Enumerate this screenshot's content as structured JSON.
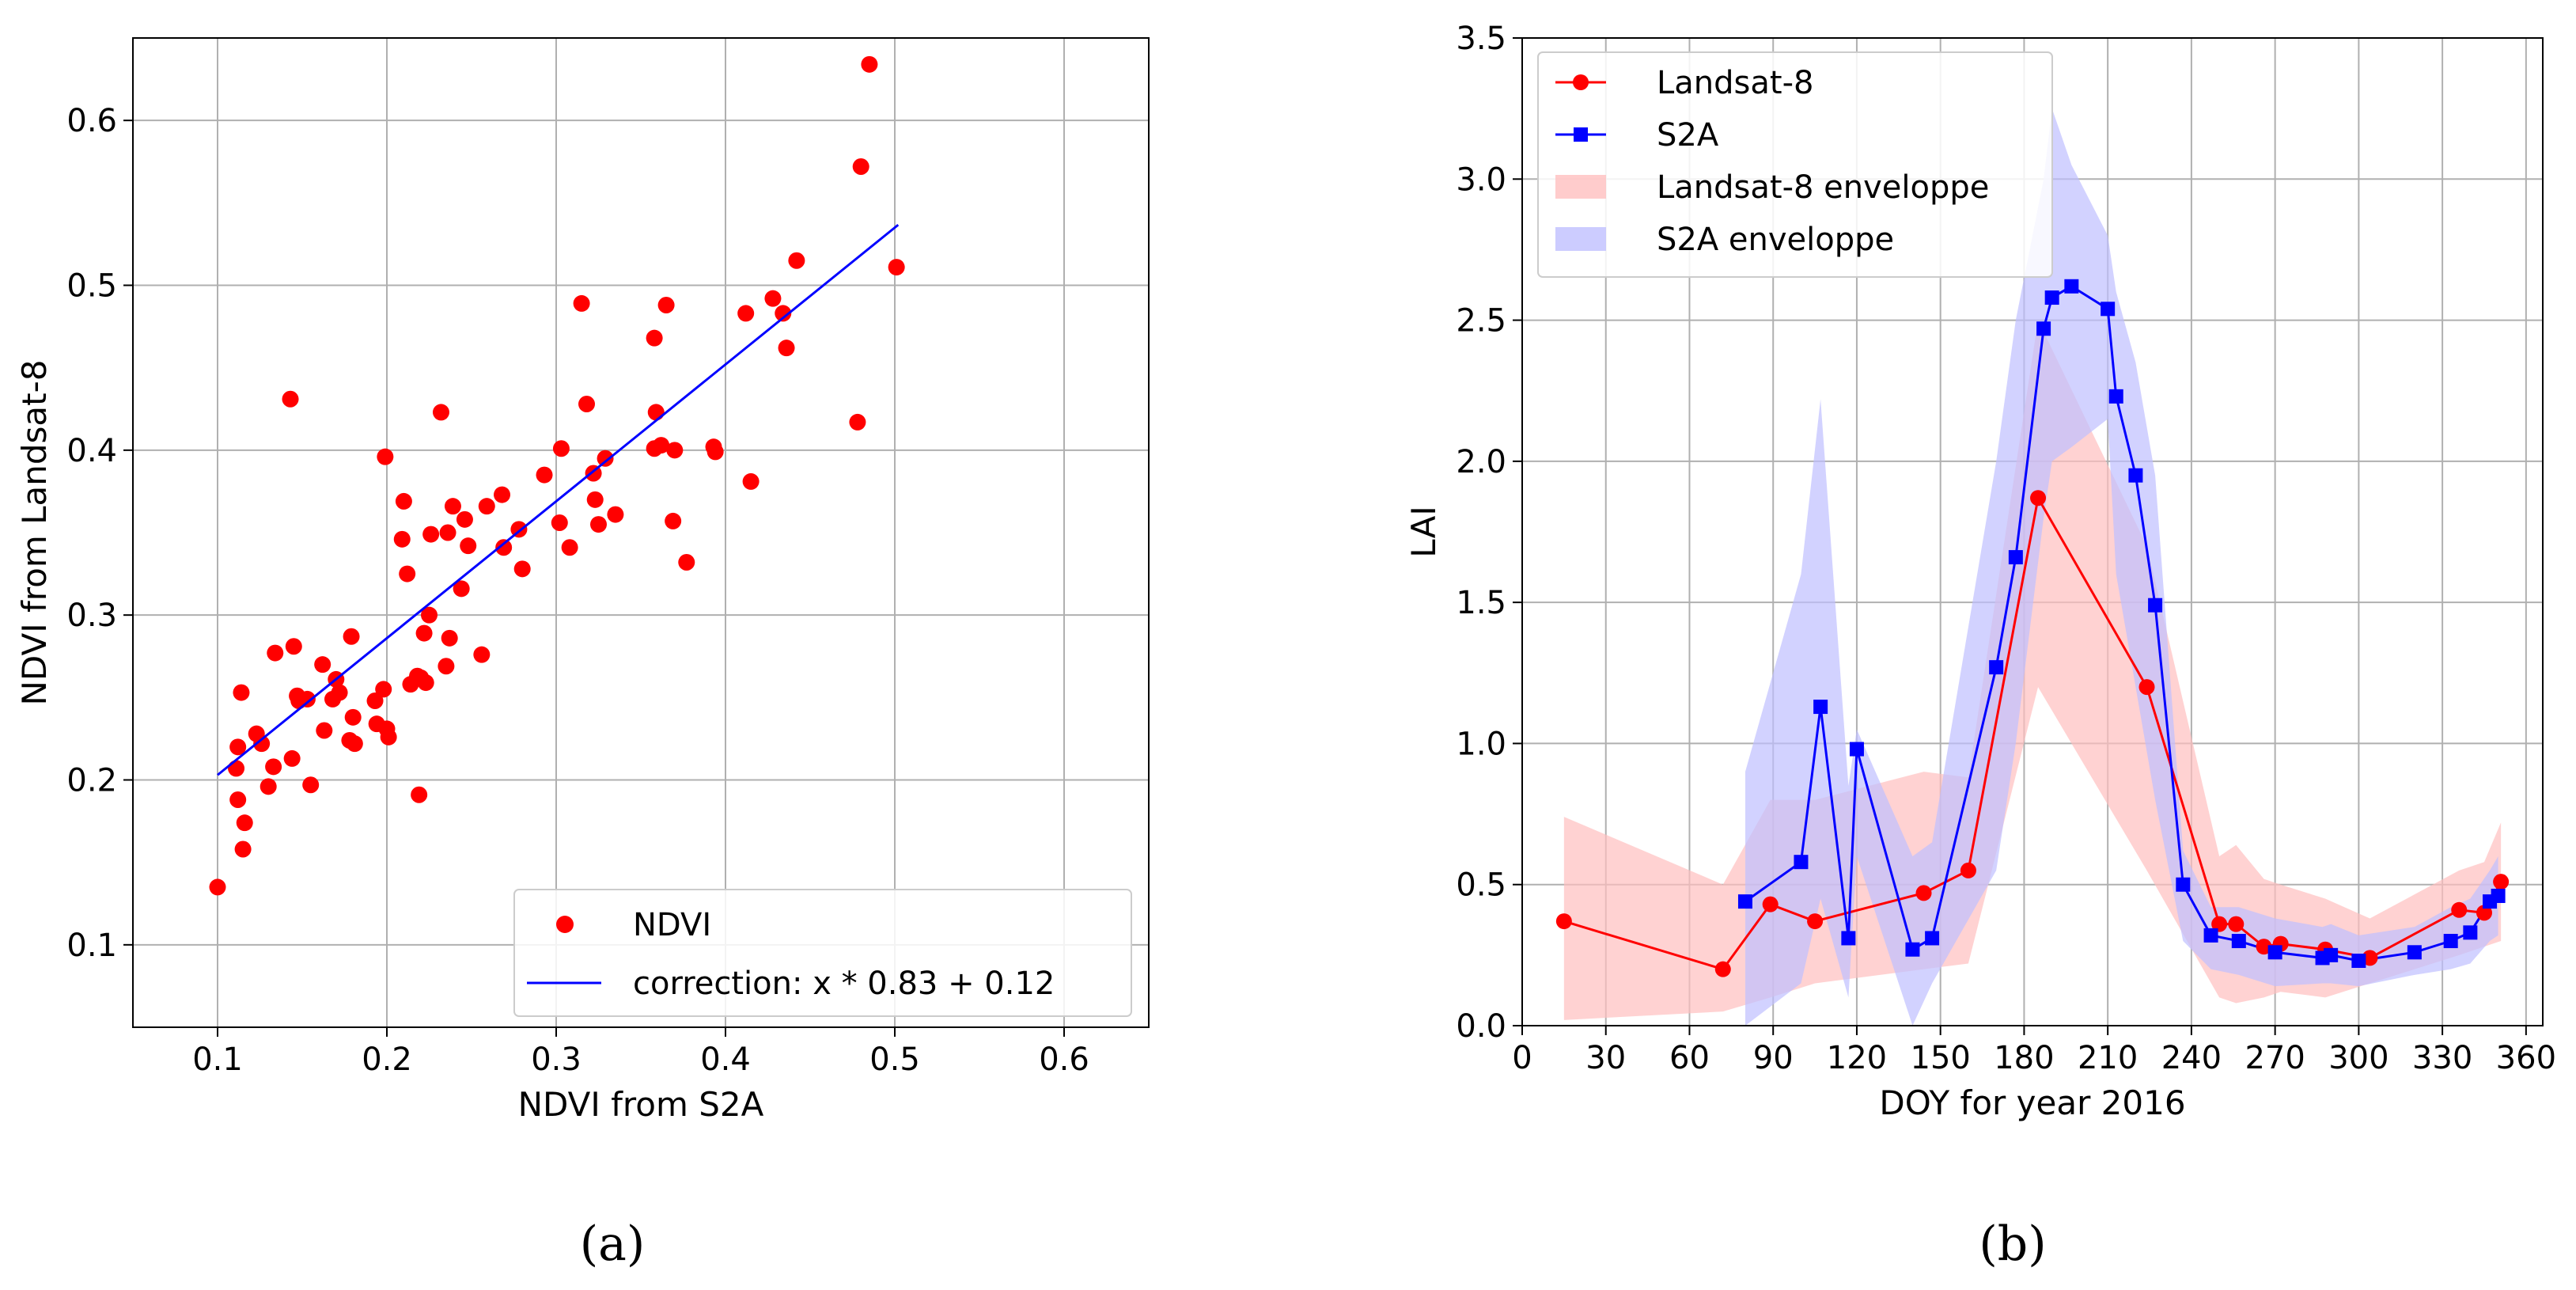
{
  "figure": {
    "caption_a": "(a)",
    "caption_b": "(b)"
  },
  "chart_data": [
    {
      "type": "scatter",
      "title": "",
      "xlabel": "NDVI from S2A",
      "ylabel": "NDVI from Landsat-8",
      "xlim": [
        0.05,
        0.65
      ],
      "ylim": [
        0.05,
        0.65
      ],
      "xticks": [
        0.1,
        0.2,
        0.3,
        0.4,
        0.5,
        0.6
      ],
      "xtick_labels": [
        "0.1",
        "0.2",
        "0.3",
        "0.4",
        "0.5",
        "0.6"
      ],
      "yticks": [
        0.1,
        0.2,
        0.3,
        0.4,
        0.5,
        0.6
      ],
      "ytick_labels": [
        "0.1",
        "0.2",
        "0.3",
        "0.4",
        "0.5",
        "0.6"
      ],
      "grid": true,
      "legend_position": "bottom-right",
      "colors": {
        "points": "#ff0000",
        "line": "#0000ff"
      },
      "series": [
        {
          "name": "NDVI",
          "kind": "scatter",
          "points": [
            [
              0.1,
              0.135
            ],
            [
              0.111,
              0.207
            ],
            [
              0.112,
              0.22
            ],
            [
              0.112,
              0.188
            ],
            [
              0.114,
              0.253
            ],
            [
              0.115,
              0.158
            ],
            [
              0.116,
              0.174
            ],
            [
              0.123,
              0.228
            ],
            [
              0.126,
              0.222
            ],
            [
              0.13,
              0.196
            ],
            [
              0.133,
              0.208
            ],
            [
              0.134,
              0.277
            ],
            [
              0.143,
              0.431
            ],
            [
              0.144,
              0.213
            ],
            [
              0.145,
              0.281
            ],
            [
              0.147,
              0.251
            ],
            [
              0.148,
              0.248
            ],
            [
              0.153,
              0.249
            ],
            [
              0.155,
              0.197
            ],
            [
              0.162,
              0.27
            ],
            [
              0.163,
              0.23
            ],
            [
              0.168,
              0.249
            ],
            [
              0.17,
              0.261
            ],
            [
              0.172,
              0.253
            ],
            [
              0.178,
              0.224
            ],
            [
              0.179,
              0.287
            ],
            [
              0.18,
              0.238
            ],
            [
              0.181,
              0.222
            ],
            [
              0.193,
              0.248
            ],
            [
              0.194,
              0.234
            ],
            [
              0.198,
              0.255
            ],
            [
              0.199,
              0.396
            ],
            [
              0.2,
              0.231
            ],
            [
              0.201,
              0.226
            ],
            [
              0.209,
              0.346
            ],
            [
              0.21,
              0.369
            ],
            [
              0.212,
              0.325
            ],
            [
              0.214,
              0.258
            ],
            [
              0.218,
              0.263
            ],
            [
              0.219,
              0.191
            ],
            [
              0.22,
              0.262
            ],
            [
              0.222,
              0.289
            ],
            [
              0.223,
              0.259
            ],
            [
              0.225,
              0.3
            ],
            [
              0.226,
              0.349
            ],
            [
              0.232,
              0.423
            ],
            [
              0.235,
              0.269
            ],
            [
              0.236,
              0.35
            ],
            [
              0.237,
              0.286
            ],
            [
              0.239,
              0.366
            ],
            [
              0.244,
              0.316
            ],
            [
              0.246,
              0.358
            ],
            [
              0.248,
              0.342
            ],
            [
              0.256,
              0.276
            ],
            [
              0.259,
              0.366
            ],
            [
              0.268,
              0.373
            ],
            [
              0.269,
              0.341
            ],
            [
              0.278,
              0.352
            ],
            [
              0.28,
              0.328
            ],
            [
              0.293,
              0.385
            ],
            [
              0.302,
              0.356
            ],
            [
              0.303,
              0.401
            ],
            [
              0.308,
              0.341
            ],
            [
              0.315,
              0.489
            ],
            [
              0.318,
              0.428
            ],
            [
              0.322,
              0.386
            ],
            [
              0.323,
              0.37
            ],
            [
              0.325,
              0.355
            ],
            [
              0.329,
              0.395
            ],
            [
              0.335,
              0.361
            ],
            [
              0.358,
              0.468
            ],
            [
              0.358,
              0.401
            ],
            [
              0.359,
              0.423
            ],
            [
              0.362,
              0.403
            ],
            [
              0.365,
              0.488
            ],
            [
              0.369,
              0.357
            ],
            [
              0.37,
              0.4
            ],
            [
              0.377,
              0.332
            ],
            [
              0.393,
              0.402
            ],
            [
              0.394,
              0.399
            ],
            [
              0.412,
              0.483
            ],
            [
              0.415,
              0.381
            ],
            [
              0.428,
              0.492
            ],
            [
              0.434,
              0.483
            ],
            [
              0.436,
              0.462
            ],
            [
              0.442,
              0.515
            ],
            [
              0.478,
              0.417
            ],
            [
              0.48,
              0.572
            ],
            [
              0.485,
              0.634
            ],
            [
              0.501,
              0.511
            ]
          ]
        },
        {
          "name": "correction: x * 0.83 + 0.12",
          "kind": "line",
          "slope": 0.83,
          "intercept": 0.12,
          "x_range": [
            0.1,
            0.502
          ]
        }
      ]
    },
    {
      "type": "line",
      "title": "",
      "xlabel": "DOY for year 2016",
      "ylabel": "LAI",
      "xlim": [
        0,
        366
      ],
      "ylim": [
        0,
        3.5
      ],
      "xticks": [
        0,
        30,
        60,
        90,
        120,
        150,
        180,
        210,
        240,
        270,
        300,
        330,
        360
      ],
      "xtick_labels": [
        "0",
        "30",
        "60",
        "90",
        "120",
        "150",
        "180",
        "210",
        "240",
        "270",
        "300",
        "330",
        "360"
      ],
      "yticks": [
        0,
        0.5,
        1.0,
        1.5,
        2.0,
        2.5,
        3.0,
        3.5
      ],
      "ytick_labels": [
        "0.0",
        "0.5",
        "1.0",
        "1.5",
        "2.0",
        "2.5",
        "3.0",
        "3.5"
      ],
      "grid": true,
      "legend_position": "top-left",
      "colors": {
        "landsat": "#ff0000",
        "s2a": "#0000ff",
        "landsat_env": "#ffbfbf",
        "s2a_env": "#bfbfff"
      },
      "series": [
        {
          "name": "Landsat-8",
          "marker": "circle",
          "x": [
            15,
            72,
            89,
            105,
            144,
            160,
            185,
            224,
            250,
            256,
            266,
            272,
            288,
            304,
            336,
            345,
            351
          ],
          "y": [
            0.37,
            0.2,
            0.43,
            0.37,
            0.47,
            0.55,
            1.87,
            1.2,
            0.36,
            0.36,
            0.28,
            0.29,
            0.27,
            0.24,
            0.41,
            0.4,
            0.51
          ]
        },
        {
          "name": "S2A",
          "marker": "square",
          "x": [
            80,
            100,
            107,
            117,
            120,
            140,
            147,
            170,
            177,
            187,
            190,
            197,
            210,
            213,
            220,
            227,
            237,
            247,
            257,
            270,
            287,
            290,
            300,
            320,
            333,
            340,
            347,
            350
          ],
          "y": [
            0.44,
            0.58,
            1.13,
            0.31,
            0.98,
            0.27,
            0.31,
            1.27,
            1.66,
            2.47,
            2.58,
            2.62,
            2.54,
            2.23,
            1.95,
            1.49,
            0.5,
            0.32,
            0.3,
            0.26,
            0.24,
            0.25,
            0.23,
            0.26,
            0.3,
            0.33,
            0.44,
            0.46
          ]
        }
      ],
      "envelopes": [
        {
          "name": "Landsat-8 enveloppe",
          "x": [
            15,
            72,
            89,
            105,
            144,
            160,
            185,
            224,
            250,
            256,
            266,
            272,
            288,
            304,
            336,
            345,
            351
          ],
          "lower": [
            0.02,
            0.05,
            0.1,
            0.15,
            0.2,
            0.22,
            1.2,
            0.55,
            0.1,
            0.08,
            0.1,
            0.12,
            0.1,
            0.15,
            0.25,
            0.28,
            0.3
          ],
          "upper": [
            0.74,
            0.5,
            0.8,
            0.8,
            0.9,
            0.88,
            2.5,
            1.7,
            0.6,
            0.64,
            0.52,
            0.5,
            0.45,
            0.38,
            0.55,
            0.58,
            0.72
          ]
        },
        {
          "name": "S2A enveloppe",
          "x": [
            80,
            100,
            107,
            117,
            120,
            140,
            147,
            170,
            177,
            187,
            190,
            197,
            210,
            213,
            220,
            227,
            237,
            247,
            257,
            270,
            287,
            290,
            300,
            320,
            333,
            340,
            347,
            350
          ],
          "lower": [
            0.0,
            0.15,
            0.45,
            0.1,
            0.6,
            0.0,
            0.15,
            0.55,
            1.0,
            1.8,
            2.0,
            2.05,
            2.15,
            1.6,
            1.2,
            0.8,
            0.3,
            0.2,
            0.18,
            0.14,
            0.15,
            0.15,
            0.14,
            0.18,
            0.2,
            0.22,
            0.3,
            0.32
          ],
          "upper": [
            0.9,
            1.6,
            2.22,
            0.85,
            1.05,
            0.6,
            0.65,
            2.0,
            2.5,
            3.0,
            3.25,
            3.05,
            2.8,
            2.6,
            2.35,
            1.95,
            0.62,
            0.42,
            0.42,
            0.38,
            0.35,
            0.36,
            0.32,
            0.35,
            0.42,
            0.45,
            0.55,
            0.6
          ]
        }
      ]
    }
  ]
}
